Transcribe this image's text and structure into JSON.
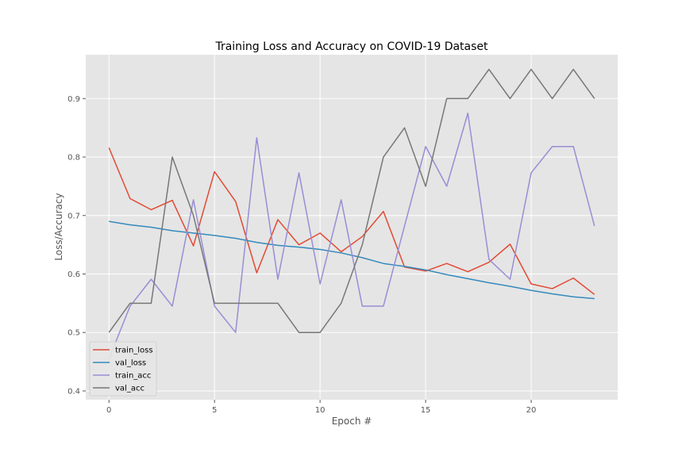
{
  "chart_data": {
    "type": "line",
    "title": "Training Loss and Accuracy on COVID-19 Dataset",
    "xlabel": "Epoch #",
    "ylabel": "Loss/Accuracy",
    "xlim": [
      -1.1,
      24.1
    ],
    "ylim": [
      0.385,
      0.975
    ],
    "xticks": [
      0,
      5,
      10,
      15,
      20
    ],
    "yticks": [
      0.4,
      0.5,
      0.6,
      0.7,
      0.8,
      0.9
    ],
    "grid": true,
    "legend_position": "lower-left",
    "colors": {
      "plot_bg": "#e5e5e5",
      "grid": "#ffffff",
      "tick_text": "#555555",
      "title_text": "#000000"
    },
    "x": [
      0,
      1,
      2,
      3,
      4,
      5,
      6,
      7,
      8,
      9,
      10,
      11,
      12,
      13,
      14,
      15,
      16,
      17,
      18,
      19,
      20,
      21,
      22,
      23
    ],
    "series": [
      {
        "name": "train_loss",
        "color": "#e24a33",
        "values": [
          0.816,
          0.729,
          0.71,
          0.726,
          0.648,
          0.775,
          0.724,
          0.602,
          0.693,
          0.65,
          0.67,
          0.638,
          0.664,
          0.707,
          0.612,
          0.605,
          0.618,
          0.604,
          0.62,
          0.651,
          0.583,
          0.575,
          0.593,
          0.565
        ]
      },
      {
        "name": "val_loss",
        "color": "#348abd",
        "values": [
          0.69,
          0.684,
          0.68,
          0.674,
          0.67,
          0.666,
          0.661,
          0.654,
          0.649,
          0.646,
          0.642,
          0.636,
          0.628,
          0.618,
          0.613,
          0.607,
          0.599,
          0.592,
          0.585,
          0.579,
          0.572,
          0.566,
          0.561,
          0.558
        ]
      },
      {
        "name": "train_acc",
        "color": "#988ed5",
        "values": [
          0.455,
          0.545,
          0.591,
          0.545,
          0.727,
          0.545,
          0.5,
          0.833,
          0.591,
          0.773,
          0.583,
          0.727,
          0.545,
          0.545,
          0.682,
          0.818,
          0.75,
          0.875,
          0.625,
          0.591,
          0.773,
          0.818,
          0.818,
          0.682
        ]
      },
      {
        "name": "val_acc",
        "color": "#777777",
        "values": [
          0.5,
          0.55,
          0.55,
          0.8,
          0.7,
          0.55,
          0.55,
          0.55,
          0.55,
          0.5,
          0.5,
          0.55,
          0.65,
          0.8,
          0.85,
          0.75,
          0.9,
          0.9,
          0.95,
          0.9,
          0.95,
          0.9,
          0.95,
          0.9
        ]
      }
    ]
  }
}
